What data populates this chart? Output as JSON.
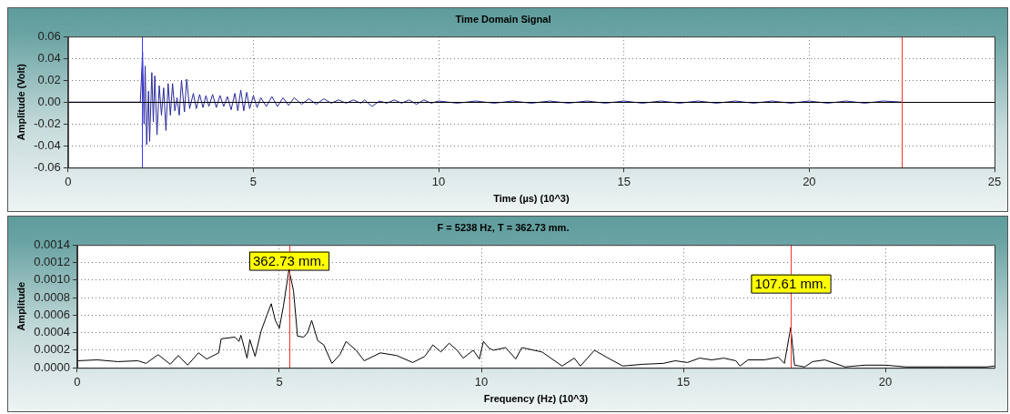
{
  "chart_data": [
    {
      "type": "line",
      "title": "Time Domain Signal",
      "xlabel": "Time (µs) (10^3)",
      "ylabel": "Amplitude (Volt)",
      "xlim": [
        0,
        25
      ],
      "xticks": [
        0,
        5,
        10,
        15,
        20,
        25
      ],
      "ylim": [
        -0.06,
        0.06
      ],
      "yticks": [
        {
          "value": -0.06,
          "label": "-0.06"
        },
        {
          "value": -0.04,
          "label": "-0.04"
        },
        {
          "value": -0.02,
          "label": "-0.02"
        },
        {
          "value": 0,
          "label": "0.00"
        },
        {
          "value": 0.02,
          "label": "0.02"
        },
        {
          "value": 0.04,
          "label": "0.04"
        },
        {
          "value": 0.06,
          "label": "0.06"
        }
      ],
      "grid": true,
      "ref_lines": [
        {
          "axis": "y",
          "value": 0,
          "color": "#000000"
        },
        {
          "axis": "x",
          "value": 2,
          "color": "#3a3aff"
        },
        {
          "axis": "x",
          "value": 22.5,
          "color": "#ff3030"
        }
      ],
      "series": [
        {
          "color": "#2a2a9a",
          "x": [
            0,
            1.95,
            1.98,
            2.01,
            2.05,
            2.08,
            2.12,
            2.17,
            2.2,
            2.26,
            2.3,
            2.34,
            2.4,
            2.46,
            2.52,
            2.58,
            2.64,
            2.7,
            2.76,
            2.82,
            2.88,
            2.94,
            3.0,
            3.06,
            3.14,
            3.2,
            3.28,
            3.38,
            3.46,
            3.55,
            3.64,
            3.72,
            3.8,
            3.9,
            4.0,
            4.1,
            4.2,
            4.3,
            4.4,
            4.5,
            4.58,
            4.66,
            4.74,
            4.82,
            4.9,
            5.0,
            5.1,
            5.2,
            5.35,
            5.5,
            5.65,
            5.8,
            5.95,
            6.1,
            6.3,
            6.5,
            6.7,
            6.9,
            7.1,
            7.3,
            7.5,
            7.7,
            7.9,
            8.0,
            8.2,
            8.4,
            8.6,
            8.8,
            9.0,
            9.2,
            9.4,
            9.6,
            9.8,
            10.0,
            10.5,
            11.0,
            11.5,
            12.0,
            12.5,
            13,
            13.5,
            14,
            14.5,
            15,
            15.5,
            16,
            16.5,
            17,
            17.5,
            18,
            18.5,
            19,
            19.5,
            20,
            20.5,
            21,
            21.5,
            22,
            22.5
          ],
          "values": [
            0,
            0,
            0.022,
            0.046,
            -0.02,
            0.033,
            -0.039,
            0.01,
            -0.036,
            0.027,
            -0.018,
            0.024,
            -0.03,
            0.015,
            -0.012,
            0.013,
            -0.026,
            0.017,
            -0.012,
            0.017,
            -0.008,
            0.004,
            -0.012,
            0.02,
            -0.009,
            0.021,
            -0.006,
            0.008,
            -0.006,
            0.007,
            -0.005,
            0.006,
            -0.004,
            0.007,
            -0.005,
            0.006,
            -0.004,
            0.005,
            -0.007,
            0.008,
            -0.008,
            0.011,
            -0.008,
            0.009,
            -0.006,
            0.006,
            -0.005,
            0.004,
            -0.004,
            0.005,
            -0.004,
            0.004,
            -0.003,
            0.004,
            -0.002,
            0.003,
            -0.002,
            0.003,
            -0.001,
            0.002,
            -0.001,
            0.002,
            -0.001,
            0.002,
            -0.004,
            0.001,
            -0.001,
            0.002,
            -0.001,
            0.002,
            -0.002,
            0.002,
            -0.001,
            0.001,
            -0.001,
            0.001,
            -0.001,
            0.001,
            -0.001,
            0.001,
            -0.001,
            0.001,
            -0.001,
            0.001,
            -0.001,
            0.001,
            -0.001,
            0.001,
            -0.001,
            0.001,
            -0.001,
            0.001,
            -0.001,
            0.001,
            -0.001,
            0.001,
            -0.001,
            0.001,
            0
          ]
        }
      ]
    },
    {
      "type": "line",
      "title": "F = 5238 Hz, T = 362.73 mm.",
      "xlabel": "Frequency (Hz) (10^3)",
      "ylabel": "Amplitude",
      "xlim": [
        0,
        22.7
      ],
      "xticks": [
        0,
        5,
        10,
        15,
        20
      ],
      "ylim": [
        0,
        0.0014
      ],
      "yticks": [
        {
          "value": 0,
          "label": "0.0000"
        },
        {
          "value": 0.0002,
          "label": "0.0002"
        },
        {
          "value": 0.0004,
          "label": "0.0004"
        },
        {
          "value": 0.0006,
          "label": "0.0006"
        },
        {
          "value": 0.0008,
          "label": "0.0008"
        },
        {
          "value": 0.001,
          "label": "0.0010"
        },
        {
          "value": 0.0012,
          "label": "0.0012"
        },
        {
          "value": 0.0014,
          "label": "0.0014"
        }
      ],
      "grid": true,
      "ref_lines": [
        {
          "axis": "x",
          "value": 5.238,
          "color": "#ff3030"
        },
        {
          "axis": "x",
          "value": 17.656,
          "color": "#ff3030"
        }
      ],
      "annotations": [
        {
          "text": "362.73 mm.",
          "x": 5.238,
          "y": 0.00122
        },
        {
          "text": "107.61 mm.",
          "x": 17.656,
          "y": 0.00096
        }
      ],
      "series": [
        {
          "color": "#000000",
          "x": [
            0,
            0.5,
            1.0,
            1.5,
            1.7,
            2.0,
            2.3,
            2.5,
            2.73,
            3.0,
            3.2,
            3.5,
            3.56,
            3.9,
            4.0,
            4.05,
            4.2,
            4.27,
            4.4,
            4.55,
            4.7,
            4.8,
            4.9,
            5.0,
            5.1,
            5.238,
            5.35,
            5.45,
            5.6,
            5.7,
            5.8,
            5.95,
            6.1,
            6.3,
            6.5,
            6.65,
            6.9,
            7.1,
            7.5,
            7.9,
            8.3,
            8.6,
            8.8,
            9.0,
            9.2,
            9.4,
            9.55,
            9.8,
            9.95,
            10.05,
            10.2,
            10.3,
            10.6,
            10.85,
            11.0,
            11.5,
            12.0,
            12.3,
            12.45,
            12.8,
            13.1,
            13.5,
            14.0,
            14.5,
            14.8,
            15.1,
            15.4,
            15.7,
            16.0,
            16.3,
            16.4,
            16.6,
            17.0,
            17.35,
            17.5,
            17.656,
            17.75,
            18.0,
            18.2,
            18.5,
            19.0,
            19.5,
            20.0,
            20.5,
            21.5,
            22.5,
            22.7
          ],
          "values": [
            8e-05,
            9e-05,
            7e-05,
            8e-05,
            5e-05,
            0.00015,
            4e-05,
            0.00014,
            3e-05,
            0.00017,
            0.0001,
            0.00017,
            0.00033,
            0.00035,
            0.0003,
            0.00037,
            0.00011,
            0.00032,
            0.00013,
            0.00042,
            0.00061,
            0.00073,
            0.00054,
            0.00045,
            0.0007,
            0.00112,
            0.00088,
            0.00036,
            0.00035,
            0.0004,
            0.00054,
            0.00031,
            0.00026,
            5e-05,
            0.00015,
            0.0003,
            0.0002,
            8e-05,
            0.00017,
            0.00014,
            6e-05,
            0.00013,
            0.00026,
            0.00018,
            0.00028,
            0.0002,
            0.00011,
            0.0002,
            0.0001,
            0.0003,
            0.00022,
            0.0002,
            0.00023,
            0.0001,
            0.00023,
            0.00018,
            2e-05,
            0.00011,
            2e-05,
            0.0002,
            0.00012,
            2e-05,
            4e-05,
            5e-05,
            8e-05,
            6e-05,
            0.00011,
            9e-05,
            0.00011,
            8e-05,
            2e-05,
            9e-05,
            9e-05,
            0.00012,
            5e-05,
            0.00046,
            3e-05,
            1e-05,
            7e-05,
            9e-05,
            1e-05,
            3e-05,
            3e-05,
            1e-05,
            1e-05,
            1e-05,
            2e-05
          ]
        }
      ]
    }
  ]
}
